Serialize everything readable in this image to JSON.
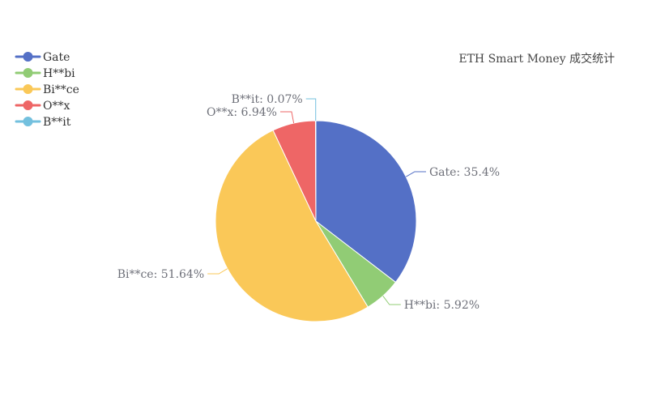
{
  "chart_data": {
    "type": "pie",
    "title": "ETH Smart Money 成交统计",
    "legend_position": "top-left",
    "slices": [
      {
        "name": "Gate",
        "value": 35.4,
        "label": "Gate: 35.4%",
        "color": "#5470c6"
      },
      {
        "name": "H**bi",
        "value": 5.92,
        "label": "H**bi: 5.92%",
        "color": "#91cc75"
      },
      {
        "name": "Bi**ce",
        "value": 51.64,
        "label": "Bi**ce: 51.64%",
        "color": "#fac858"
      },
      {
        "name": "O**x",
        "value": 6.94,
        "label": "O**x: 6.94%",
        "color": "#ee6666"
      },
      {
        "name": "B**it",
        "value": 0.07,
        "label": "B**it: 0.07%",
        "color": "#73c0de"
      }
    ]
  }
}
